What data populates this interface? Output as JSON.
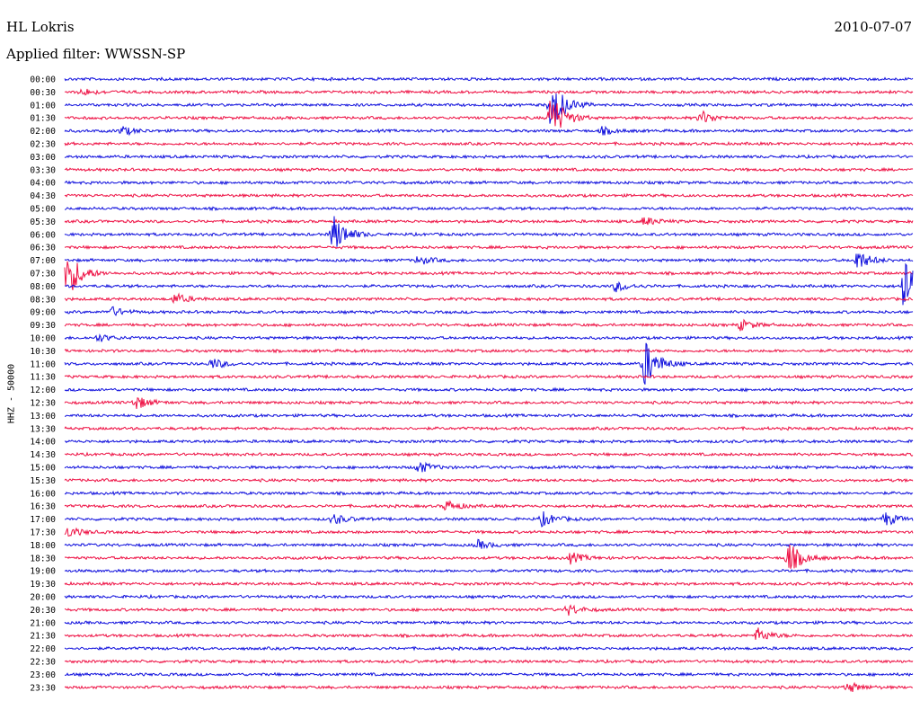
{
  "header": {
    "station": "HL Lokris",
    "date": "2010-07-07",
    "filter": "Applied filter: WWSSN-SP"
  },
  "channel_label": "HHZ - 50000",
  "colors": {
    "blue": "#1010dd",
    "red": "#ee1144"
  },
  "row_labels": [
    "00:00",
    "00:30",
    "01:00",
    "01:30",
    "02:00",
    "02:30",
    "03:00",
    "03:30",
    "04:00",
    "04:30",
    "05:00",
    "05:30",
    "06:00",
    "06:30",
    "07:00",
    "07:30",
    "08:00",
    "08:30",
    "09:00",
    "09:30",
    "10:00",
    "10:30",
    "11:00",
    "11:30",
    "12:00",
    "12:30",
    "13:00",
    "13:30",
    "14:00",
    "14:30",
    "15:00",
    "15:30",
    "16:00",
    "16:30",
    "17:00",
    "17:30",
    "18:00",
    "18:30",
    "19:00",
    "19:30",
    "20:00",
    "20:30",
    "21:00",
    "21:30",
    "22:00",
    "22:30",
    "23:00",
    "23:30"
  ],
  "events": [
    {
      "row": 1,
      "minute": 0.6,
      "amp": 4
    },
    {
      "row": 2,
      "minute": 17.2,
      "amp": 30
    },
    {
      "row": 3,
      "minute": 17.2,
      "amp": 28
    },
    {
      "row": 3,
      "minute": 22.5,
      "amp": 8
    },
    {
      "row": 4,
      "minute": 2.0,
      "amp": 5
    },
    {
      "row": 4,
      "minute": 19.0,
      "amp": 4
    },
    {
      "row": 12,
      "minute": 9.5,
      "amp": 22
    },
    {
      "row": 11,
      "minute": 20.5,
      "amp": 5
    },
    {
      "row": 14,
      "minute": 12.5,
      "amp": 5
    },
    {
      "row": 14,
      "minute": 28.0,
      "amp": 12
    },
    {
      "row": 15,
      "minute": 0.1,
      "amp": 28
    },
    {
      "row": 16,
      "minute": 19.5,
      "amp": 6
    },
    {
      "row": 16,
      "minute": 29.7,
      "amp": 45
    },
    {
      "row": 17,
      "minute": 3.9,
      "amp": 6
    },
    {
      "row": 18,
      "minute": 1.6,
      "amp": 6
    },
    {
      "row": 19,
      "minute": 23.9,
      "amp": 6
    },
    {
      "row": 20,
      "minute": 1.2,
      "amp": 4
    },
    {
      "row": 22,
      "minute": 20.5,
      "amp": 28
    },
    {
      "row": 22,
      "minute": 5.2,
      "amp": 6
    },
    {
      "row": 25,
      "minute": 2.5,
      "amp": 8
    },
    {
      "row": 30,
      "minute": 12.5,
      "amp": 7
    },
    {
      "row": 33,
      "minute": 13.5,
      "amp": 6
    },
    {
      "row": 34,
      "minute": 9.5,
      "amp": 6
    },
    {
      "row": 34,
      "minute": 16.9,
      "amp": 8
    },
    {
      "row": 34,
      "minute": 29.0,
      "amp": 8
    },
    {
      "row": 35,
      "minute": 0.1,
      "amp": 6
    },
    {
      "row": 36,
      "minute": 14.6,
      "amp": 5
    },
    {
      "row": 37,
      "minute": 17.9,
      "amp": 6
    },
    {
      "row": 37,
      "minute": 25.6,
      "amp": 18
    },
    {
      "row": 41,
      "minute": 17.8,
      "amp": 6
    },
    {
      "row": 43,
      "minute": 24.5,
      "amp": 8
    },
    {
      "row": 47,
      "minute": 27.7,
      "amp": 6
    }
  ]
}
